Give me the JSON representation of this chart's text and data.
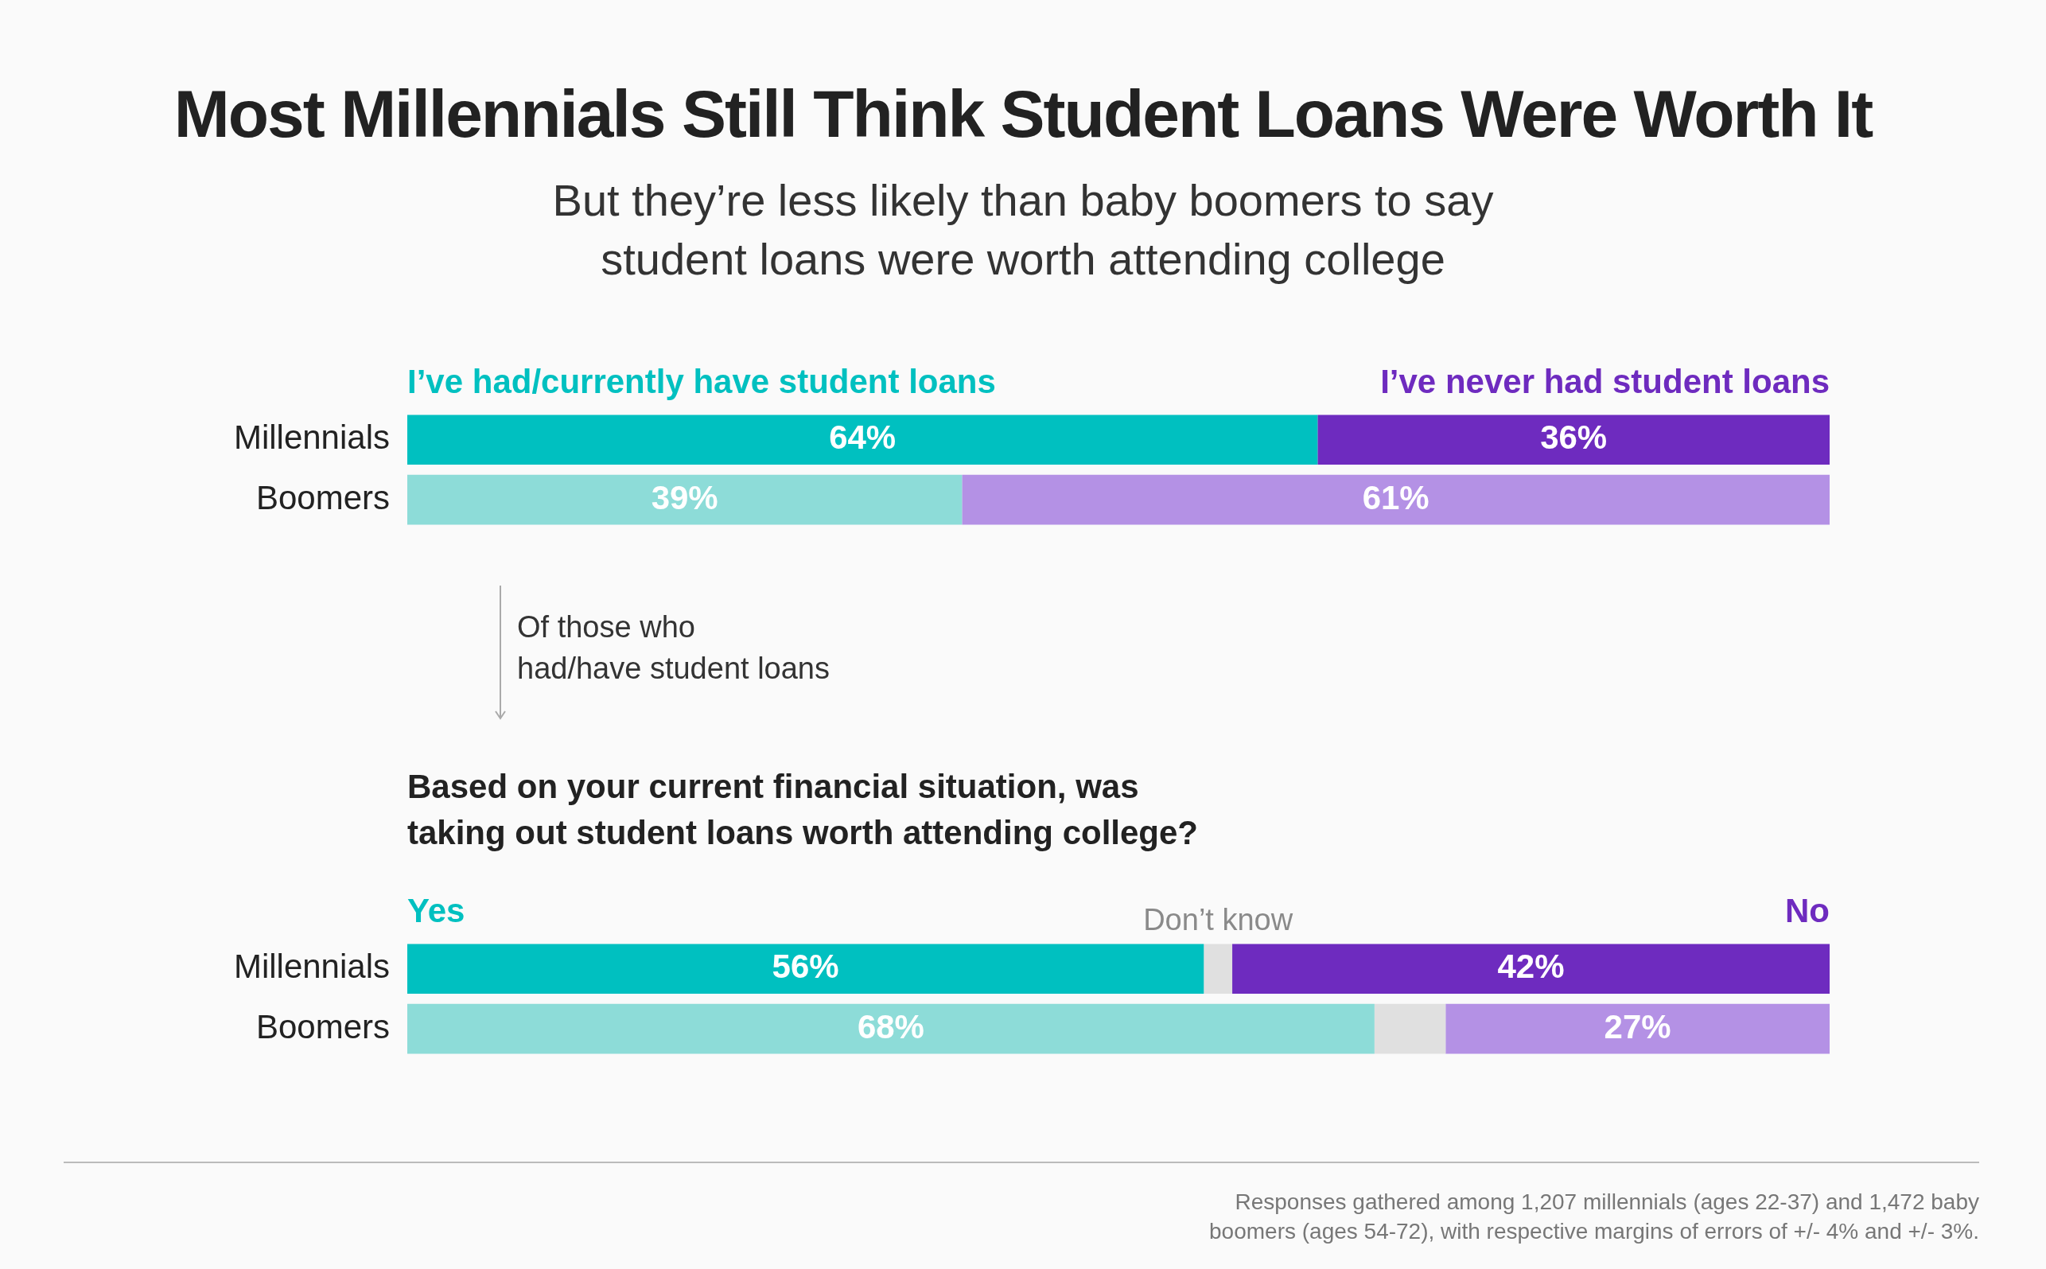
{
  "chart_data": [
    {
      "type": "bar",
      "orientation": "horizontal",
      "stacked": true,
      "title": "Most Millennials Still Think Student Loans Were Worth It",
      "subtitle": "But they’re less likely than baby boomers to say\nstudent loans were worth attending college",
      "categories": [
        "Millennials",
        "Boomers"
      ],
      "xlim": [
        0,
        100
      ],
      "tick_labels": "y",
      "legend": "top",
      "series": [
        {
          "name": "I’ve had/currently have student loans",
          "colors": [
            "#00c0c0",
            "#8ddcd8"
          ],
          "values": [
            64,
            39
          ],
          "value_labels": [
            "64%",
            "39%"
          ]
        },
        {
          "name": "I’ve never had student loans",
          "colors": [
            "#6e2bbf",
            "#b491e5"
          ],
          "values": [
            36,
            61
          ],
          "value_labels": [
            "36%",
            "61%"
          ]
        }
      ],
      "annotations": [
        "Of those who\nhad/have student loans"
      ]
    },
    {
      "type": "bar",
      "orientation": "horizontal",
      "stacked": true,
      "title": "Based on your current financial situation, was\ntaking out student loans worth attending college?",
      "categories": [
        "Millennials",
        "Boomers"
      ],
      "xlim": [
        0,
        100
      ],
      "tick_labels": "y",
      "legend": "top",
      "series": [
        {
          "name": "Yes",
          "colors": [
            "#00c0c0",
            "#8ddcd8"
          ],
          "values": [
            56,
            68
          ],
          "value_labels": [
            "56%",
            "68%"
          ]
        },
        {
          "name": "Don’t know",
          "colors": [
            "#e0e0e0",
            "#e0e0e0"
          ],
          "values": [
            2,
            5
          ],
          "value_labels": [
            null,
            null
          ]
        },
        {
          "name": "No",
          "colors": [
            "#6e2bbf",
            "#b491e5"
          ],
          "values": [
            42,
            27
          ],
          "value_labels": [
            "42%",
            "27%"
          ]
        }
      ],
      "annotations": [
        "Responses gathered among 1,207 millennials (ages 22-37) and 1,472 baby boomers (ages 54-72), with respective margins of errors of +/- 4% and +/- 3%."
      ]
    }
  ]
}
